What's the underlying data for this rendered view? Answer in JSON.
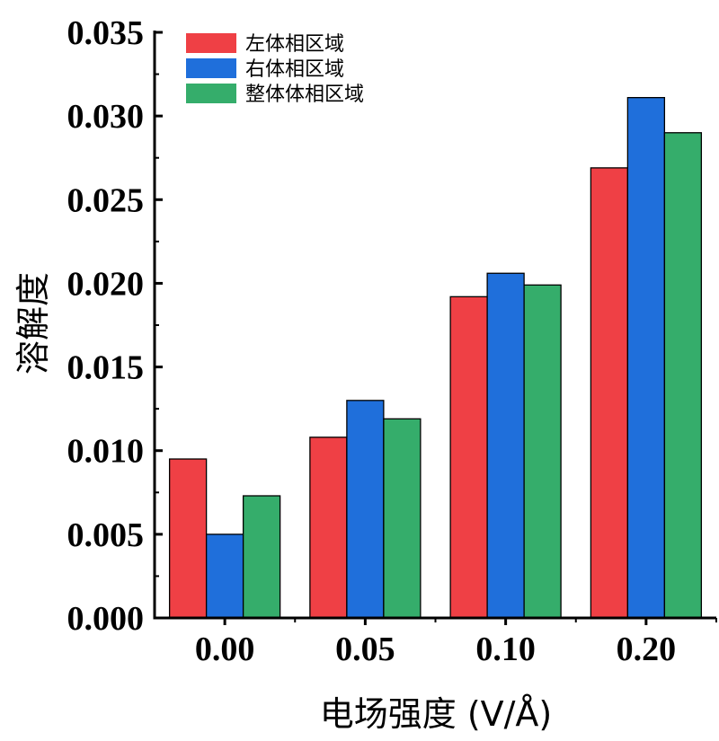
{
  "chart_data": {
    "type": "bar",
    "title": "",
    "xlabel": "电场强度 (V/Å)",
    "ylabel": "溶解度",
    "categories": [
      "0.00",
      "0.05",
      "0.10",
      "0.20"
    ],
    "ylim": [
      0,
      0.035
    ],
    "yticks": [
      "0.000",
      "0.005",
      "0.010",
      "0.015",
      "0.020",
      "0.025",
      "0.030",
      "0.035"
    ],
    "legend_position": "top-left",
    "grid": false,
    "series": [
      {
        "name": "左体相区域",
        "color": "#ef4045",
        "values": [
          0.0095,
          0.0108,
          0.0192,
          0.0269
        ]
      },
      {
        "name": "右体相区域",
        "color": "#1f6fdb",
        "values": [
          0.005,
          0.013,
          0.0206,
          0.0311
        ]
      },
      {
        "name": "整体体相区域",
        "color": "#35ad6b",
        "values": [
          0.0073,
          0.0119,
          0.0199,
          0.029
        ]
      }
    ]
  }
}
